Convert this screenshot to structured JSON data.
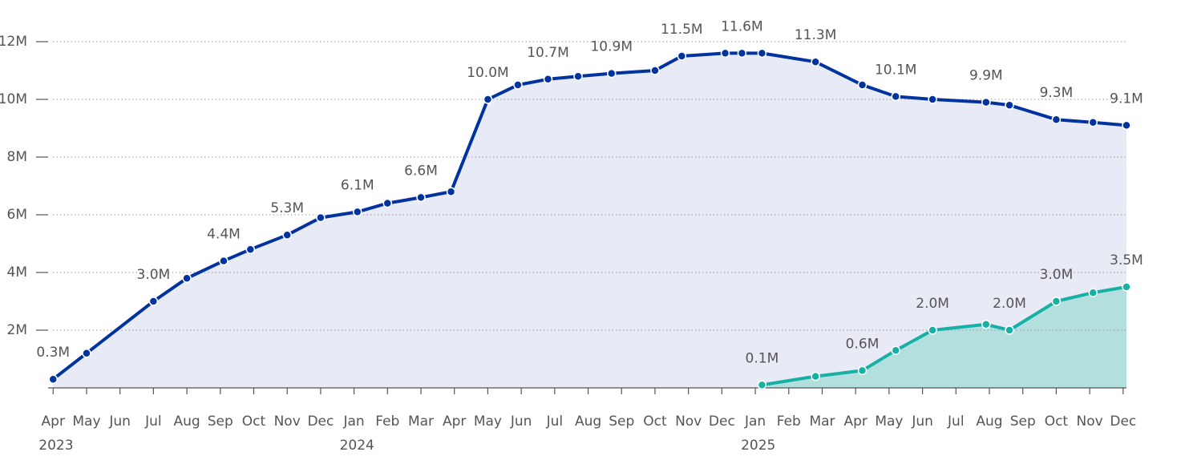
{
  "chart_data": {
    "type": "line",
    "xlim": [
      -0.15,
      32.1
    ],
    "xticks": [
      {
        "value": 0,
        "label": "Apr"
      },
      {
        "value": 1,
        "label": "May"
      },
      {
        "value": 2,
        "label": "Jun"
      },
      {
        "value": 3,
        "label": "Jul"
      },
      {
        "value": 4,
        "label": "Aug"
      },
      {
        "value": 5,
        "label": "Sep"
      },
      {
        "value": 6,
        "label": "Oct"
      },
      {
        "value": 7,
        "label": "Nov"
      },
      {
        "value": 8,
        "label": "Dec"
      },
      {
        "value": 9,
        "label": "Jan"
      },
      {
        "value": 10,
        "label": "Feb"
      },
      {
        "value": 11,
        "label": "Mar"
      },
      {
        "value": 12,
        "label": "Apr"
      },
      {
        "value": 13,
        "label": "May"
      },
      {
        "value": 14,
        "label": "Jun"
      },
      {
        "value": 15,
        "label": "Jul"
      },
      {
        "value": 16,
        "label": "Aug"
      },
      {
        "value": 17,
        "label": "Sep"
      },
      {
        "value": 18,
        "label": "Oct"
      },
      {
        "value": 19,
        "label": "Nov"
      },
      {
        "value": 20,
        "label": "Dec"
      },
      {
        "value": 21,
        "label": "Jan"
      },
      {
        "value": 22,
        "label": "Feb"
      },
      {
        "value": 23,
        "label": "Mar"
      },
      {
        "value": 24,
        "label": "Apr"
      },
      {
        "value": 25,
        "label": "May"
      },
      {
        "value": 26,
        "label": "Jun"
      },
      {
        "value": 27,
        "label": "Jul"
      },
      {
        "value": 28,
        "label": "Aug"
      },
      {
        "value": 29,
        "label": "Sep"
      },
      {
        "value": 30,
        "label": "Oct"
      },
      {
        "value": 31,
        "label": "Nov"
      },
      {
        "value": 32,
        "label": "Dec"
      }
    ],
    "year_labels": [
      {
        "text": "2023",
        "x": 0
      },
      {
        "text": "2024",
        "x": 9
      },
      {
        "text": "2025",
        "x": 21
      }
    ],
    "ylim": [
      0,
      12
    ],
    "yticks": [
      {
        "value": 2,
        "label": "2M"
      },
      {
        "value": 4,
        "label": "4M"
      },
      {
        "value": 6,
        "label": "6M"
      },
      {
        "value": 8,
        "label": "8M"
      },
      {
        "value": 10,
        "label": "10M"
      },
      {
        "value": 12,
        "label": "12M"
      }
    ],
    "grid": true,
    "series": [
      {
        "color": "#0033a0",
        "area_color": "#e8eaf6",
        "x": [
          0,
          1.0,
          3.0,
          4.0,
          5.1,
          5.9,
          7.0,
          8.0,
          9.1,
          10.0,
          11.0,
          11.9,
          13.0,
          13.9,
          14.8,
          15.7,
          16.7,
          18.0,
          18.8,
          20.1,
          20.6,
          21.2,
          22.8,
          24.2,
          25.2,
          26.3,
          27.9,
          28.6,
          30.0,
          31.1,
          32.1
        ],
        "values": [
          0.3,
          1.2,
          3.0,
          3.8,
          4.4,
          4.8,
          5.3,
          5.9,
          6.1,
          6.4,
          6.6,
          6.8,
          10.0,
          10.5,
          10.7,
          10.8,
          10.9,
          11.0,
          11.5,
          11.6,
          11.6,
          11.6,
          11.3,
          10.5,
          10.1,
          10.0,
          9.9,
          9.8,
          9.3,
          9.2,
          9.1
        ],
        "value_labels": [
          "0.3M",
          null,
          "3.0M",
          null,
          "4.4M",
          null,
          "5.3M",
          null,
          "6.1M",
          null,
          "6.6M",
          null,
          "10.0M",
          null,
          "10.7M",
          null,
          "10.9M",
          null,
          "11.5M",
          null,
          "11.6M",
          null,
          "11.3M",
          null,
          "10.1M",
          null,
          "9.9M",
          null,
          "9.3M",
          null,
          "9.1M"
        ]
      },
      {
        "color": "#17b0a5",
        "area_color": "#b3dfdf",
        "x": [
          21.2,
          22.8,
          24.2,
          25.2,
          26.3,
          27.9,
          28.6,
          30.0,
          31.1,
          32.1
        ],
        "values": [
          0.1,
          0.4,
          0.6,
          1.3,
          2.0,
          2.2,
          2.0,
          3.0,
          3.3,
          3.5
        ],
        "value_labels": [
          "0.1M",
          null,
          "0.6M",
          null,
          "2.0M",
          null,
          "2.0M",
          "3.0M",
          null,
          "3.5M"
        ]
      }
    ]
  }
}
